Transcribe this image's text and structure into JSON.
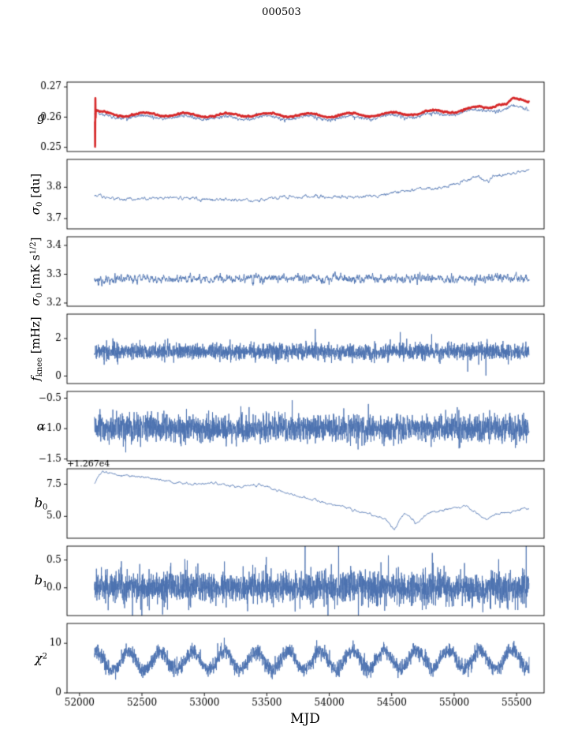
{
  "chart_data": {
    "type": "line",
    "title": "000503",
    "xlabel": "MJD",
    "xlim": [
      51900,
      55720
    ],
    "xticks": [
      [
        52000,
        "52000"
      ],
      [
        52500,
        "52500"
      ],
      [
        53000,
        "53000"
      ],
      [
        53500,
        "53500"
      ],
      [
        54000,
        "54000"
      ],
      [
        54500,
        "54500"
      ],
      [
        55000,
        "55000"
      ],
      [
        55500,
        "55500"
      ]
    ],
    "colors": {
      "blue": "#4c72b0",
      "red": "#d62728",
      "axes": "#000000"
    },
    "panels": [
      {
        "id": "g",
        "ylabel_parts": [
          [
            "g",
            "it"
          ]
        ],
        "ylabel_rotated": false,
        "ylim": [
          0.2486,
          0.2716
        ],
        "yticks": [
          [
            0.25,
            "0.25"
          ],
          [
            0.26,
            "0.26"
          ],
          [
            0.27,
            "0.27"
          ]
        ],
        "series": [
          {
            "name": "g-blue",
            "color": "#4c72b0",
            "line_width": 0.9,
            "seed": 11,
            "n": 2600,
            "x_start": 52120,
            "x_end": 55600,
            "trend": [
              [
                52120,
                0.2612
              ],
              [
                52135,
                0.2623
              ],
              [
                52160,
                0.2604
              ],
              [
                52300,
                0.26
              ],
              [
                52700,
                0.26
              ],
              [
                53000,
                0.2597
              ],
              [
                53500,
                0.2599
              ],
              [
                54000,
                0.2597
              ],
              [
                54400,
                0.26
              ],
              [
                54700,
                0.2605
              ],
              [
                55000,
                0.2612
              ],
              [
                55150,
                0.2618
              ],
              [
                55300,
                0.2627
              ],
              [
                55380,
                0.2621
              ],
              [
                55460,
                0.2631
              ],
              [
                55600,
                0.2628
              ]
            ],
            "wave": {
              "amp": 0.0006,
              "period": 330,
              "phase": 0.5
            },
            "noise": {
              "amp": 0.00038,
              "smooth": 2,
              "spike_prob": 0.04,
              "spike_mult": 2.4
            }
          },
          {
            "name": "g-red",
            "color": "#d62728",
            "line_width": 2.6,
            "seed": 7,
            "n": 2600,
            "x_start": 52132,
            "x_end": 55600,
            "pre_points": [
              [
                52124,
                0.2586
              ],
              [
                52125,
                0.2502
              ],
              [
                52127,
                0.2663
              ],
              [
                52129,
                0.2598
              ],
              [
                52131,
                0.2622
              ]
            ],
            "trend": [
              [
                52132,
                0.262
              ],
              [
                52160,
                0.2613
              ],
              [
                52300,
                0.2609
              ],
              [
                52700,
                0.2609
              ],
              [
                53000,
                0.2606
              ],
              [
                53500,
                0.2608
              ],
              [
                54000,
                0.2606
              ],
              [
                54400,
                0.2609
              ],
              [
                54700,
                0.2614
              ],
              [
                55000,
                0.2621
              ],
              [
                55150,
                0.2627
              ],
              [
                55300,
                0.2636
              ],
              [
                55360,
                0.2647
              ],
              [
                55420,
                0.2641
              ],
              [
                55470,
                0.2659
              ],
              [
                55530,
                0.2654
              ],
              [
                55600,
                0.2652
              ]
            ],
            "wave": {
              "amp": 0.0006,
              "period": 330,
              "phase": 0.5
            },
            "noise": {
              "amp": 0.00018,
              "smooth": 3
            }
          }
        ]
      },
      {
        "id": "sigma0-du",
        "ylabel_parts": [
          [
            "σ",
            "it"
          ],
          [
            "0",
            "sub"
          ],
          [
            " [du]",
            "norm"
          ]
        ],
        "ylabel_rotated": true,
        "ylim": [
          3.667,
          3.889
        ],
        "yticks": [
          [
            3.7,
            "3.7"
          ],
          [
            3.8,
            "3.8"
          ]
        ],
        "series": [
          {
            "name": "sigma0-du",
            "color": "#4c72b0",
            "line_width": 0.9,
            "seed": 21,
            "n": 2200,
            "x_start": 52120,
            "x_end": 55600,
            "trend": [
              [
                52120,
                3.776
              ],
              [
                52200,
                3.768
              ],
              [
                52350,
                3.761
              ],
              [
                52600,
                3.766
              ],
              [
                52800,
                3.766
              ],
              [
                53000,
                3.762
              ],
              [
                53200,
                3.761
              ],
              [
                53400,
                3.757
              ],
              [
                53600,
                3.767
              ],
              [
                53800,
                3.771
              ],
              [
                54000,
                3.768
              ],
              [
                54200,
                3.769
              ],
              [
                54400,
                3.773
              ],
              [
                54600,
                3.789
              ],
              [
                54750,
                3.796
              ],
              [
                54900,
                3.799
              ],
              [
                55000,
                3.811
              ],
              [
                55100,
                3.821
              ],
              [
                55180,
                3.836
              ],
              [
                55260,
                3.82
              ],
              [
                55340,
                3.837
              ],
              [
                55450,
                3.843
              ],
              [
                55600,
                3.855
              ]
            ],
            "noise": {
              "amp": 0.004,
              "smooth": 4
            }
          }
        ]
      },
      {
        "id": "sigma0-mK",
        "ylabel_parts": [
          [
            "σ",
            "it"
          ],
          [
            "0",
            "sub"
          ],
          [
            " [mK s",
            "norm"
          ],
          [
            "1/2",
            "sup"
          ],
          [
            "]",
            "norm"
          ]
        ],
        "ylabel_rotated": true,
        "ylim": [
          3.189,
          3.43
        ],
        "yticks": [
          [
            3.2,
            "3.2"
          ],
          [
            3.3,
            "3.3"
          ],
          [
            3.4,
            "3.4"
          ]
        ],
        "series": [
          {
            "name": "sigma0-mK",
            "color": "#4c72b0",
            "line_width": 0.9,
            "seed": 31,
            "n": 2500,
            "x_start": 52120,
            "x_end": 55600,
            "trend": [
              [
                52120,
                3.276
              ],
              [
                52400,
                3.286
              ],
              [
                53000,
                3.284
              ],
              [
                54000,
                3.286
              ],
              [
                55000,
                3.284
              ],
              [
                55600,
                3.287
              ]
            ],
            "noise": {
              "amp": 0.011,
              "smooth": 2,
              "spike_prob": 0.012,
              "spike_mult": 2.2
            }
          }
        ]
      },
      {
        "id": "fknee",
        "ylabel_parts": [
          [
            "f",
            "it"
          ],
          [
            "knee",
            "sub"
          ],
          [
            " [mHz]",
            "norm"
          ]
        ],
        "ylabel_rotated": true,
        "ylim": [
          -0.4,
          3.3
        ],
        "yticks": [
          [
            0,
            "0"
          ],
          [
            2,
            "2"
          ]
        ],
        "series": [
          {
            "name": "fknee",
            "color": "#4c72b0",
            "line_width": 0.9,
            "seed": 41,
            "n": 2700,
            "x_start": 52120,
            "x_end": 55600,
            "trend": [
              [
                52120,
                1.32
              ],
              [
                55600,
                1.28
              ]
            ],
            "noise": {
              "amp": 0.21,
              "smooth": 1,
              "spike_prob": 0.03,
              "spike_mult": 2.0
            }
          }
        ]
      },
      {
        "id": "alpha",
        "ylabel_parts": [
          [
            "α",
            "it"
          ]
        ],
        "ylabel_rotated": false,
        "ylim": [
          -1.53,
          -0.39
        ],
        "yticks": [
          [
            -1.5,
            "−1.5"
          ],
          [
            -1.0,
            "−1.0"
          ],
          [
            -0.5,
            "−0.5"
          ]
        ],
        "series": [
          {
            "name": "alpha",
            "color": "#4c72b0",
            "line_width": 0.9,
            "seed": 51,
            "n": 2700,
            "x_start": 52120,
            "x_end": 55600,
            "trend": [
              [
                52120,
                -1.0
              ],
              [
                55600,
                -1.0
              ]
            ],
            "noise": {
              "amp": 0.11,
              "smooth": 1,
              "spike_prob": 0.02,
              "spike_mult": 1.9
            }
          }
        ]
      },
      {
        "id": "b0",
        "ylabel_parts": [
          [
            "b",
            "it"
          ],
          [
            "0",
            "sub"
          ]
        ],
        "ylabel_rotated": false,
        "offset_label": "+1.267e4",
        "ylim": [
          3.3,
          8.7
        ],
        "yticks": [
          [
            5.0,
            "5.0"
          ],
          [
            7.5,
            "7.5"
          ]
        ],
        "series": [
          {
            "name": "b0",
            "color": "#4c72b0",
            "line_width": 0.9,
            "seed": 61,
            "n": 2200,
            "x_start": 52120,
            "x_end": 55600,
            "trend": [
              [
                52120,
                7.6
              ],
              [
                52180,
                8.5
              ],
              [
                52300,
                8.25
              ],
              [
                52600,
                7.9
              ],
              [
                52900,
                7.45
              ],
              [
                53050,
                7.6
              ],
              [
                53250,
                7.3
              ],
              [
                53450,
                7.45
              ],
              [
                53700,
                6.7
              ],
              [
                54000,
                6.0
              ],
              [
                54200,
                5.5
              ],
              [
                54350,
                5.1
              ],
              [
                54450,
                4.8
              ],
              [
                54520,
                3.95
              ],
              [
                54600,
                5.3
              ],
              [
                54700,
                4.45
              ],
              [
                54800,
                5.3
              ],
              [
                54900,
                5.45
              ],
              [
                55100,
                5.8
              ],
              [
                55250,
                4.75
              ],
              [
                55350,
                5.2
              ],
              [
                55600,
                5.65
              ]
            ],
            "noise": {
              "amp": 0.07,
              "smooth": 5
            }
          }
        ]
      },
      {
        "id": "b1",
        "ylabel_parts": [
          [
            "b",
            "it"
          ],
          [
            "1",
            "sub"
          ]
        ],
        "ylabel_rotated": false,
        "ylim": [
          -0.5,
          0.75
        ],
        "yticks": [
          [
            0.0,
            "0.0"
          ],
          [
            0.5,
            "0.5"
          ]
        ],
        "series": [
          {
            "name": "b1",
            "color": "#4c72b0",
            "line_width": 0.9,
            "seed": 71,
            "n": 2700,
            "x_start": 52120,
            "x_end": 55600,
            "trend": [
              [
                52120,
                0.02
              ],
              [
                55600,
                0.0
              ]
            ],
            "noise": {
              "amp": 0.14,
              "smooth": 1,
              "spike_prob": 0.03,
              "spike_mult": 2.3
            }
          }
        ]
      },
      {
        "id": "chi2",
        "ylabel_parts": [
          [
            "χ",
            "it"
          ],
          [
            "2",
            "sup"
          ]
        ],
        "ylabel_rotated": false,
        "ylim": [
          0,
          14
        ],
        "yticks": [
          [
            0,
            "0"
          ],
          [
            10,
            "10"
          ]
        ],
        "series": [
          {
            "name": "chi2",
            "color": "#4c72b0",
            "line_width": 0.9,
            "seed": 81,
            "n": 2700,
            "x_start": 52120,
            "x_end": 55600,
            "trend": [
              [
                52120,
                6.4
              ],
              [
                55600,
                6.8
              ]
            ],
            "wave": {
              "amp": 1.9,
              "period": 256,
              "phase": 1.2
            },
            "noise": {
              "amp": 0.75,
              "smooth": 1,
              "spike_prob": 0.02,
              "spike_mult": 1.7
            }
          }
        ]
      }
    ]
  }
}
